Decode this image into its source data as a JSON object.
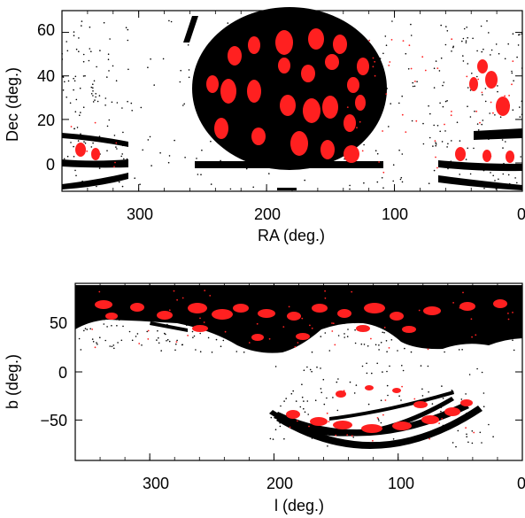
{
  "chart_data": [
    {
      "type": "scatter",
      "title": "",
      "xlabel": "RA (deg.)",
      "ylabel": "Dec (deg.)",
      "xlim": [
        360,
        0
      ],
      "ylim": [
        -13,
        70
      ],
      "x_ticks": [
        "300",
        "200",
        "100",
        "0"
      ],
      "y_ticks": [
        "60",
        "40",
        "20",
        "0"
      ],
      "x_tick_values": [
        300,
        200,
        100,
        0
      ],
      "y_tick_values": [
        60,
        40,
        20,
        0
      ],
      "series_colors": {
        "black": "#000000",
        "red": "#ff2020"
      }
    },
    {
      "type": "scatter",
      "title": "",
      "xlabel": "l (deg.)",
      "ylabel": "b (deg.)",
      "xlim": [
        360,
        0
      ],
      "ylim": [
        -92,
        92
      ],
      "x_ticks": [
        "300",
        "200",
        "100",
        "0"
      ],
      "y_ticks": [
        "50",
        "0",
        "−50"
      ],
      "x_tick_values": [
        300,
        200,
        100,
        0
      ],
      "y_tick_values": [
        50,
        0,
        -50
      ],
      "series_colors": {
        "black": "#000000",
        "red": "#ff2020"
      }
    }
  ]
}
